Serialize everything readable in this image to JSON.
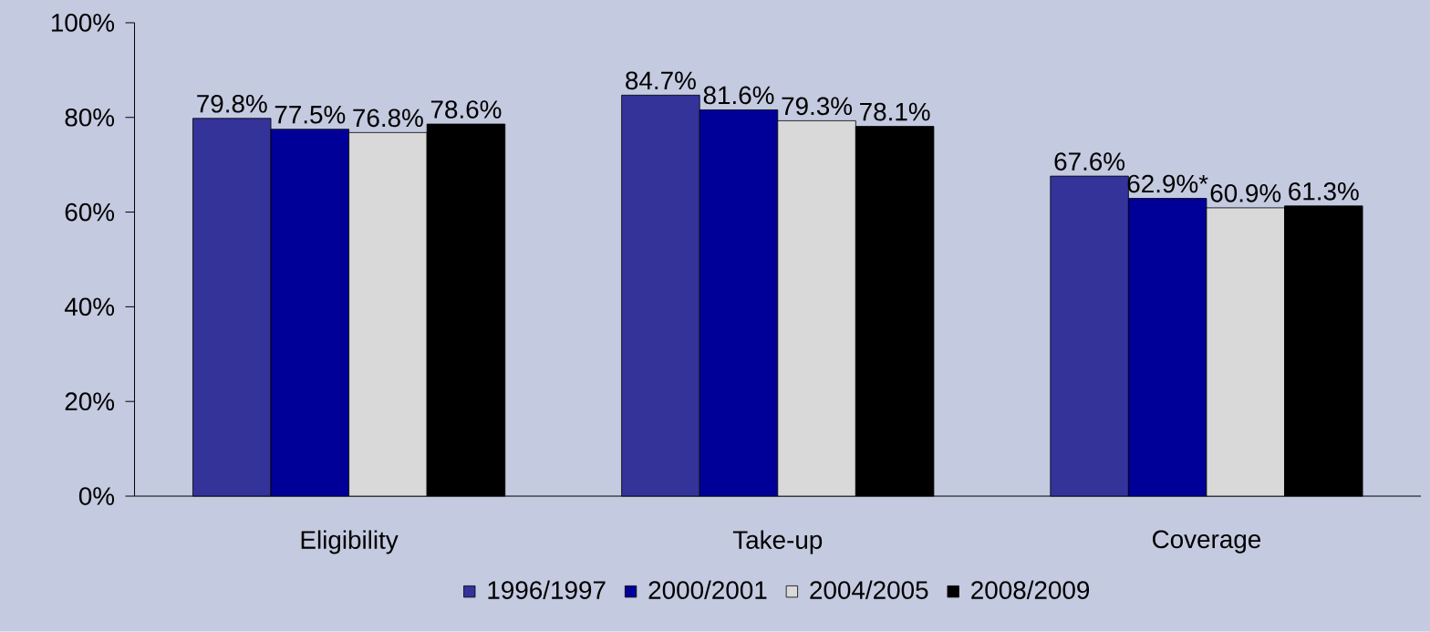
{
  "chart_data": {
    "type": "bar",
    "categories": [
      "Eligibility",
      "Take-up",
      "Coverage"
    ],
    "series": [
      {
        "name": "1996/1997",
        "color": "#333399",
        "values": [
          79.8,
          84.7,
          67.6
        ],
        "value_labels": [
          "79.8%",
          "84.7%",
          "67.6%"
        ]
      },
      {
        "name": "2000/2001",
        "color": "#000099",
        "values": [
          77.5,
          81.6,
          62.9
        ],
        "value_labels": [
          "77.5%",
          "81.6%",
          "62.9%*"
        ]
      },
      {
        "name": "2004/2005",
        "color": "#d9d9d9",
        "values": [
          76.8,
          79.3,
          60.9
        ],
        "value_labels": [
          "76.8%",
          "79.3%",
          "60.9%"
        ]
      },
      {
        "name": "2008/2009",
        "color": "#000000",
        "values": [
          78.6,
          78.1,
          61.3
        ],
        "value_labels": [
          "78.6%",
          "78.1%",
          "61.3%"
        ]
      }
    ],
    "ylim": [
      0,
      100
    ],
    "yticks": [
      {
        "value": 0,
        "label": "0%"
      },
      {
        "value": 20,
        "label": "20%"
      },
      {
        "value": 40,
        "label": "40%"
      },
      {
        "value": 60,
        "label": "60%"
      },
      {
        "value": 80,
        "label": "80%"
      },
      {
        "value": 100,
        "label": "100%"
      }
    ],
    "grid": false,
    "legend": "bottom"
  }
}
